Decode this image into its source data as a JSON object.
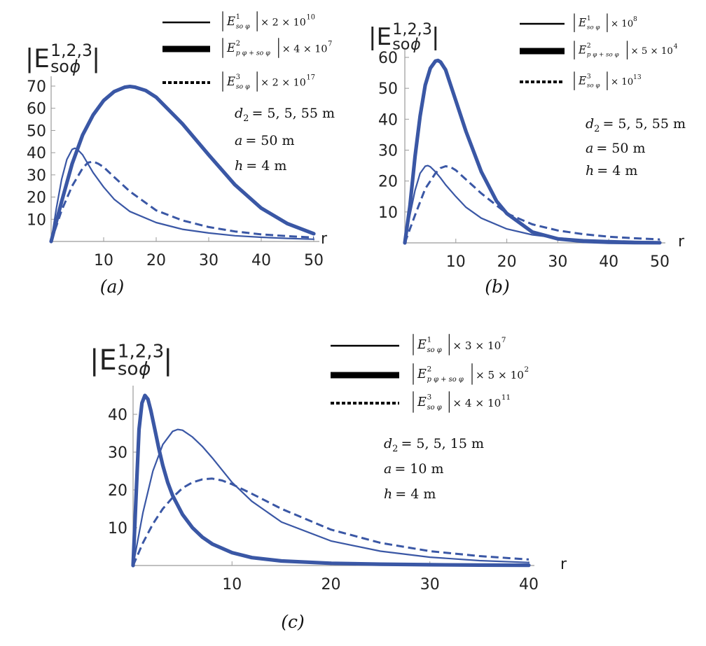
{
  "y_axis_label": {
    "base": "|E",
    "sub": "so",
    "phi": "ϕ",
    "sup": "1,2,3",
    "close": "|"
  },
  "chart_data": [
    {
      "type": "line",
      "caption": "(a)",
      "xlabel": "r",
      "xlim": [
        0,
        50
      ],
      "ylim": [
        0,
        70
      ],
      "xticks": [
        "10",
        "20",
        "30",
        "40",
        "50"
      ],
      "yticks": [
        "10",
        "20",
        "30",
        "40",
        "50",
        "60",
        "70"
      ],
      "grid": false,
      "legend": "top-right",
      "series": [
        {
          "name_label": "|E^1_{soφ}| × 2 × 10^10",
          "style": "thin",
          "legend": {
            "sup": "1",
            "sub": "so φ",
            "mult": "× 2 × 10",
            "exp": "10"
          },
          "x": [
            0,
            1,
            2,
            3,
            4,
            4.5,
            5,
            6,
            7,
            8,
            10,
            12,
            15,
            20,
            25,
            30,
            35,
            40,
            45,
            50
          ],
          "y": [
            0,
            15,
            28,
            37,
            41.5,
            42,
            41.5,
            39,
            35,
            31,
            24.5,
            19,
            13.5,
            8.5,
            5.5,
            3.8,
            2.6,
            1.9,
            1.4,
            1.0
          ]
        },
        {
          "name_label": "|E^2_{pφ+soφ}| × 4 × 10^7",
          "style": "thick",
          "legend": {
            "sup": "2",
            "sub": "p φ + so φ",
            "mult": "× 4 × 10",
            "exp": "7"
          },
          "x": [
            0,
            2,
            4,
            6,
            8,
            10,
            12,
            14,
            15,
            16,
            18,
            20,
            25,
            30,
            35,
            40,
            45,
            50
          ],
          "y": [
            0,
            18,
            35,
            48,
            57,
            63.5,
            67.5,
            69.5,
            69.8,
            69.5,
            68,
            65,
            53,
            39,
            25.5,
            15,
            8,
            3.5
          ]
        },
        {
          "name_label": "|E^3_{soφ}| × 2 × 10^17",
          "style": "dashed",
          "legend": {
            "sup": "3",
            "sub": "so φ",
            "mult": "× 2 × 10",
            "exp": "17"
          },
          "x": [
            0,
            2,
            4,
            6,
            7,
            8,
            9,
            10,
            12,
            15,
            20,
            25,
            30,
            35,
            40,
            45,
            50
          ],
          "y": [
            0,
            14,
            25,
            33,
            35.5,
            36,
            35,
            33.5,
            29,
            22.5,
            14,
            9.5,
            6.5,
            4.5,
            3.2,
            2.4,
            1.8
          ]
        }
      ],
      "params": [
        {
          "lhs": "d",
          "sub": "2",
          "rhs": "= 5, 5, 55 m"
        },
        {
          "lhs": "a",
          "sub": "",
          "rhs": "= 50 m"
        },
        {
          "lhs": "h",
          "sub": "",
          "rhs": "= 4 m"
        }
      ]
    },
    {
      "type": "line",
      "caption": "(b)",
      "xlabel": "r",
      "xlim": [
        0,
        50
      ],
      "ylim": [
        0,
        60
      ],
      "xticks": [
        "10",
        "20",
        "30",
        "40",
        "50"
      ],
      "yticks": [
        "10",
        "20",
        "30",
        "40",
        "50",
        "60"
      ],
      "grid": false,
      "legend": "top-right",
      "series": [
        {
          "name_label": "|E^1_{soφ}| × 10^8",
          "style": "thin",
          "legend": {
            "sup": "1",
            "sub": "so φ",
            "mult": "× 10",
            "exp": "8"
          },
          "x": [
            0,
            1,
            2,
            3,
            4,
            4.5,
            5,
            6,
            7,
            8,
            10,
            12,
            15,
            20,
            25,
            30,
            35,
            40,
            45,
            50
          ],
          "y": [
            0,
            9,
            17,
            22.5,
            24.8,
            25,
            24.6,
            23,
            21,
            18.8,
            15,
            11.5,
            8,
            4.5,
            2.6,
            1.6,
            1.0,
            0.7,
            0.5,
            0.3
          ]
        },
        {
          "name_label": "|E^2_{pφ+soφ}| × 5 × 10^4",
          "style": "thick",
          "legend": {
            "sup": "2",
            "sub": "p φ + so φ",
            "mult": "× 5 × 10",
            "exp": "4"
          },
          "x": [
            0,
            1,
            2,
            3,
            4,
            5,
            6,
            6.5,
            7,
            8,
            9,
            10,
            12,
            15,
            18,
            20,
            25,
            30,
            35,
            40,
            45,
            50
          ],
          "y": [
            0,
            12,
            28,
            41,
            51,
            56.5,
            58.8,
            59,
            58.5,
            56,
            51,
            46,
            36,
            23,
            13.5,
            9.5,
            3.5,
            1.3,
            0.5,
            0.2,
            0.1,
            0.05
          ]
        },
        {
          "name_label": "|E^3_{soφ}| × 10^13",
          "style": "dashed",
          "legend": {
            "sup": "3",
            "sub": "so φ",
            "mult": "× 10",
            "exp": "13"
          },
          "x": [
            0,
            2,
            4,
            6,
            7,
            8,
            9,
            10,
            12,
            15,
            20,
            25,
            30,
            35,
            40,
            45,
            50
          ],
          "y": [
            0,
            9,
            17.5,
            22.5,
            24.2,
            24.8,
            24.5,
            23.5,
            20.5,
            16,
            9.5,
            6,
            4,
            2.8,
            2.0,
            1.5,
            1.1
          ]
        }
      ],
      "params": [
        {
          "lhs": "d",
          "sub": "2",
          "rhs": "= 5, 5, 55 m"
        },
        {
          "lhs": "a",
          "sub": "",
          "rhs": "= 50 m"
        },
        {
          "lhs": "h",
          "sub": "",
          "rhs": "= 4 m"
        }
      ]
    },
    {
      "type": "line",
      "caption": "(c)",
      "xlabel": "r",
      "xlim": [
        0,
        40
      ],
      "ylim": [
        0,
        45
      ],
      "xticks": [
        "10",
        "20",
        "30",
        "40"
      ],
      "yticks": [
        "10",
        "20",
        "30",
        "40"
      ],
      "grid": false,
      "legend": "top-right",
      "series": [
        {
          "name_label": "|E^1_{soφ}| × 3 × 10^7",
          "style": "thin",
          "legend": {
            "sup": "1",
            "sub": "so φ",
            "mult": "× 3 × 10",
            "exp": "7"
          },
          "x": [
            0,
            1,
            2,
            3,
            4,
            4.5,
            5,
            6,
            7,
            8,
            10,
            12,
            15,
            20,
            25,
            30,
            35,
            40
          ],
          "y": [
            0,
            14,
            25,
            32,
            35.5,
            36,
            35.8,
            34,
            31.5,
            28.5,
            22,
            17,
            11.5,
            6.5,
            3.8,
            2.2,
            1.3,
            0.8
          ]
        },
        {
          "name_label": "|E^2_{pφ+soφ}| × 5 × 10^2",
          "style": "thick",
          "legend": {
            "sup": "2",
            "sub": "p φ + so φ",
            "mult": "× 5 × 10",
            "exp": "2"
          },
          "x": [
            0,
            0.3,
            0.6,
            0.9,
            1.2,
            1.5,
            1.8,
            2.2,
            2.6,
            3,
            3.5,
            4,
            5,
            6,
            7,
            8,
            10,
            12,
            15,
            20,
            25,
            30,
            35,
            40
          ],
          "y": [
            0,
            18,
            36,
            43,
            45,
            44,
            41,
            36,
            31,
            26.5,
            22,
            18.5,
            13.5,
            10,
            7.5,
            5.7,
            3.4,
            2.1,
            1.2,
            0.6,
            0.35,
            0.2,
            0.12,
            0.08
          ]
        },
        {
          "name_label": "|E^3_{soφ}| × 4 × 10^11",
          "style": "dashed",
          "legend": {
            "sup": "3",
            "sub": "so φ",
            "mult": "× 4 × 10",
            "exp": "11"
          },
          "x": [
            0,
            1,
            2,
            3,
            4,
            5,
            6,
            7,
            8,
            9,
            10,
            12,
            15,
            20,
            25,
            30,
            35,
            40
          ],
          "y": [
            0,
            6,
            11,
            15,
            18,
            20.5,
            22,
            22.8,
            23,
            22.5,
            21.5,
            19,
            15,
            9.5,
            6,
            3.8,
            2.5,
            1.6
          ]
        }
      ],
      "params": [
        {
          "lhs": "d",
          "sub": "2",
          "rhs": "= 5, 5, 15 m"
        },
        {
          "lhs": "a",
          "sub": "",
          "rhs": "= 10 m"
        },
        {
          "lhs": "h",
          "sub": "",
          "rhs": "= 4 m"
        }
      ]
    }
  ],
  "colors": {
    "curve": "#3a57a5",
    "axis": "#9a9a9a",
    "text": "#111111",
    "legend_line": "#000000"
  }
}
